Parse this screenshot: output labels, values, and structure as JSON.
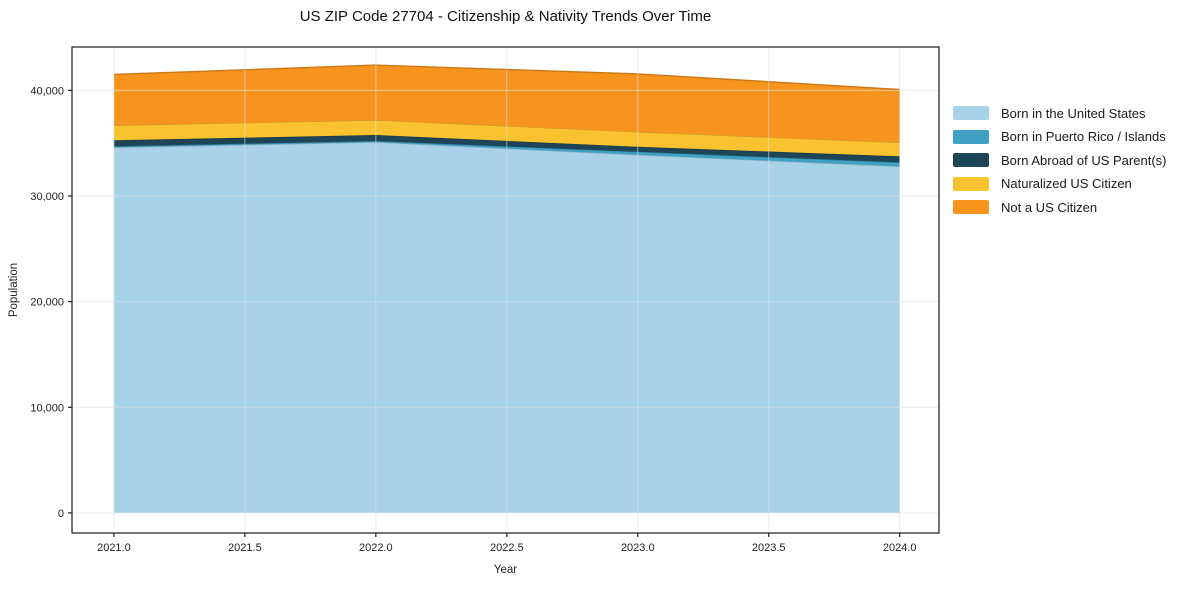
{
  "chart_data": {
    "type": "area",
    "stacked": true,
    "title": "US ZIP Code 27704 - Citizenship & Nativity Trends Over Time",
    "xlabel": "Year",
    "ylabel": "Population",
    "x": [
      2021,
      2022,
      2023,
      2024
    ],
    "series": [
      {
        "name": "Born in the United States",
        "color": "#a8d2e8",
        "values": [
          34600,
          35100,
          33900,
          32800
        ]
      },
      {
        "name": "Born in Puerto Rico / Islands",
        "color": "#3ea1c2",
        "values": [
          100,
          100,
          280,
          380
        ]
      },
      {
        "name": "Born Abroad of US Parent(s)",
        "color": "#1d4557",
        "values": [
          570,
          570,
          470,
          570
        ]
      },
      {
        "name": "Naturalized US Citizen",
        "color": "#f9c22e",
        "values": [
          1420,
          1420,
          1420,
          1320
        ]
      },
      {
        "name": "Not a US Citizen",
        "color": "#f7941d",
        "values": [
          4820,
          5200,
          5480,
          5010
        ]
      }
    ],
    "xticks": {
      "values": [
        2021.0,
        2021.5,
        2022.0,
        2022.5,
        2023.0,
        2023.5,
        2024.0
      ],
      "labels": [
        "2021.0",
        "2021.5",
        "2022.0",
        "2022.5",
        "2023.0",
        "2023.5",
        "2024.0"
      ]
    },
    "yticks": {
      "values": [
        0,
        10000,
        20000,
        30000,
        40000
      ],
      "labels": [
        "0",
        "10,000",
        "20,000",
        "30,000",
        "40,000"
      ]
    },
    "xlim": [
      2020.84,
      2024.15
    ],
    "ylim": [
      -1900,
      44100
    ],
    "grid": true,
    "legend_position": "center-right-outside"
  },
  "colors": {
    "grid": "#e0e0e0",
    "spine": "#1c1c1c",
    "tick_text": "#222222"
  }
}
